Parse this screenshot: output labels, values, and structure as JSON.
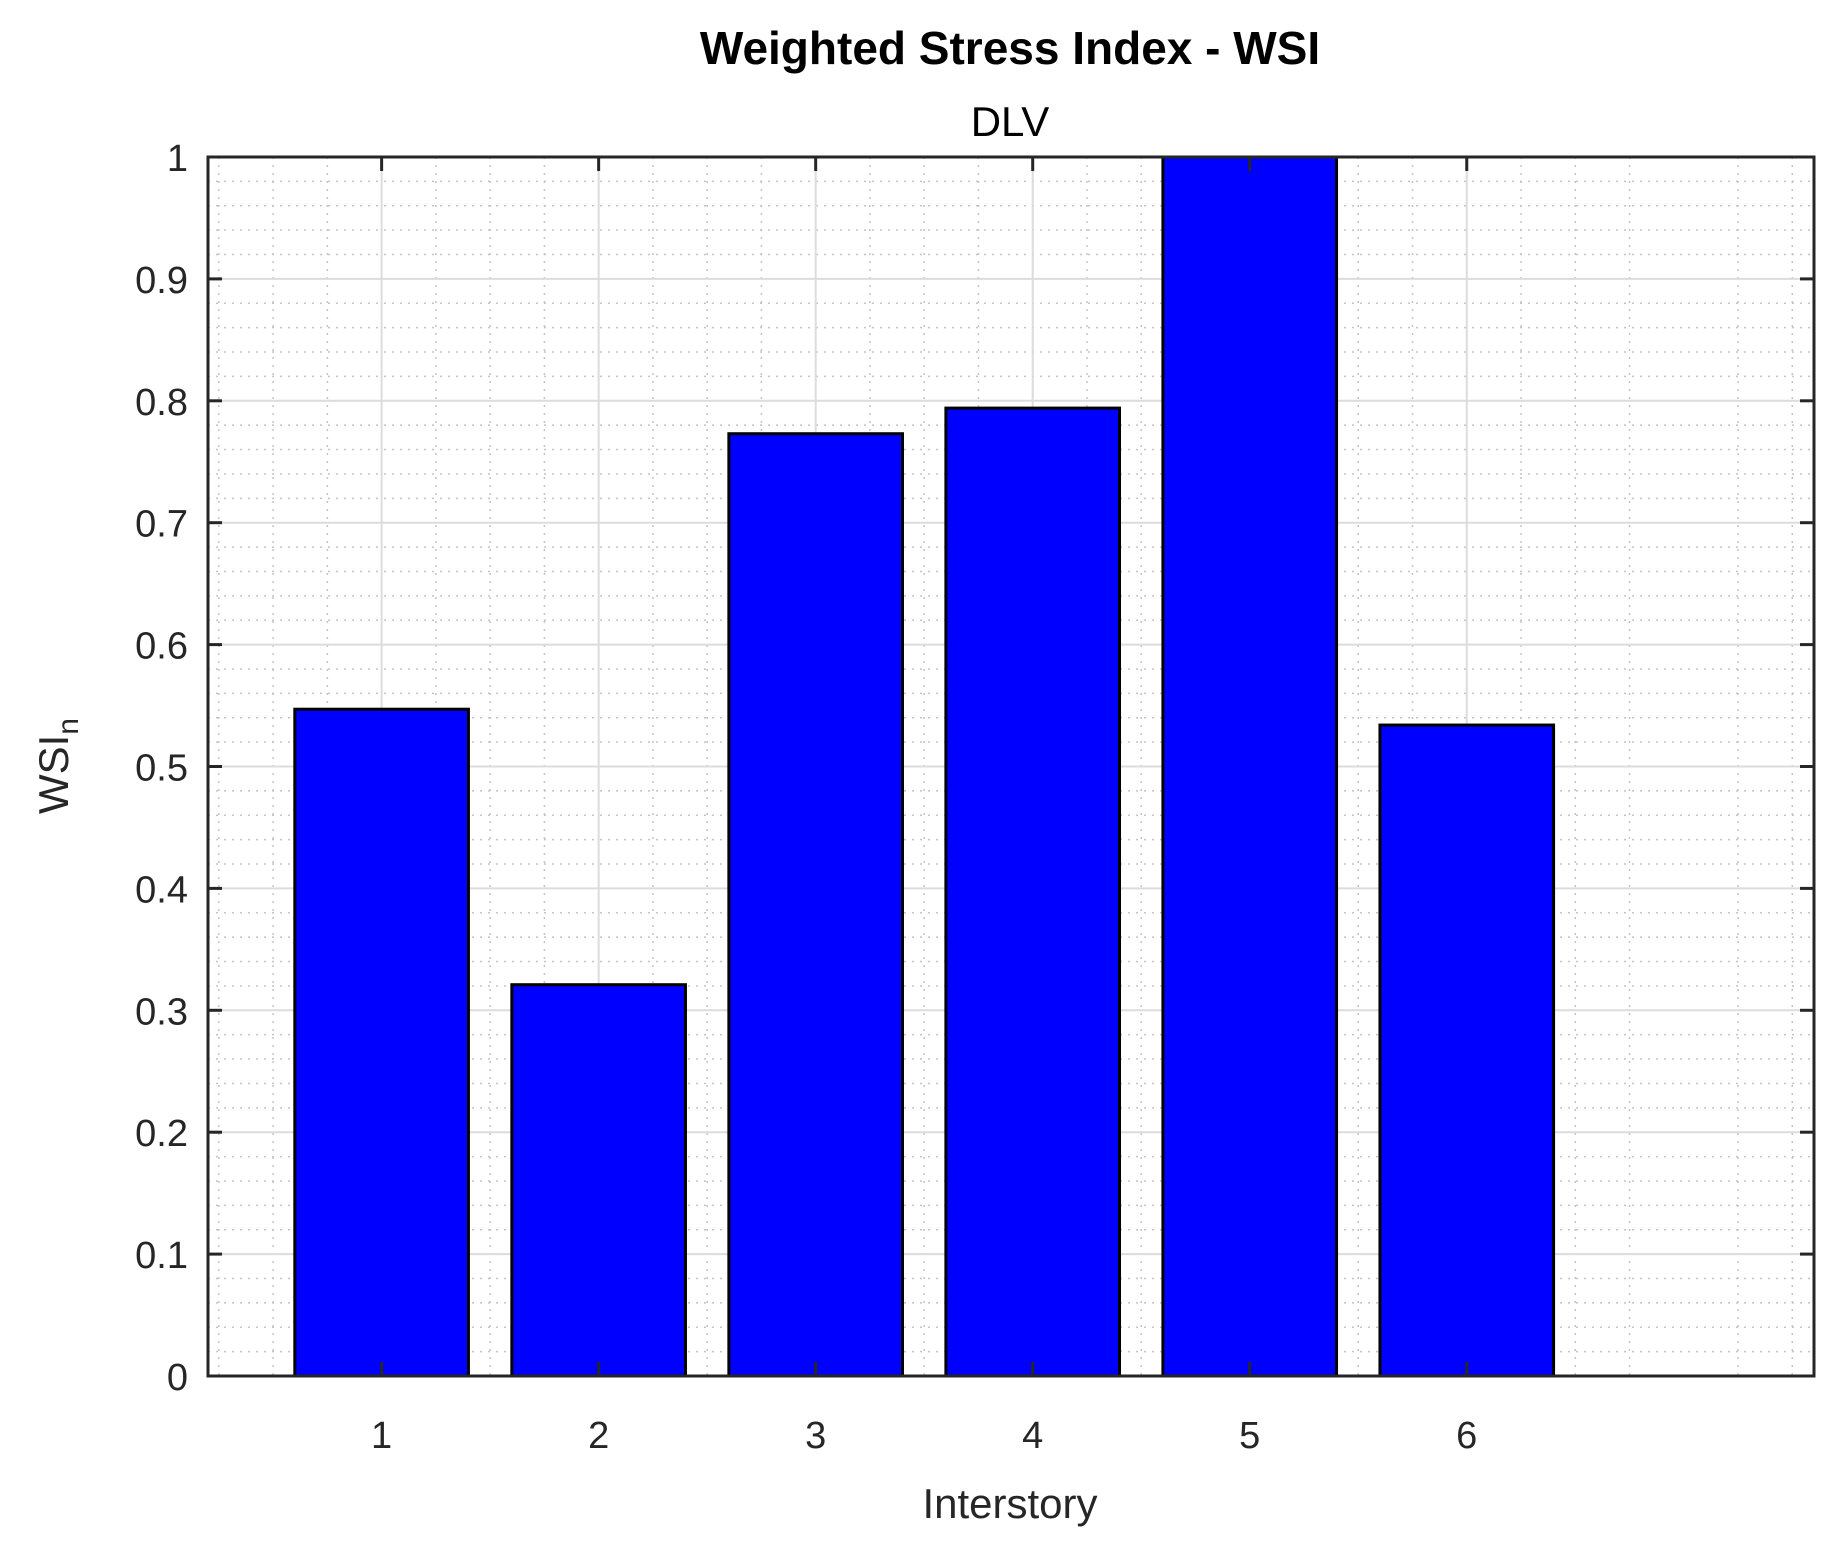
{
  "chart_data": {
    "type": "bar",
    "title": "Weighted Stress Index - WSI",
    "subtitle": "DLV",
    "xlabel": "Interstory",
    "ylabel": "WSI",
    "ylabel_subscript": "n",
    "categories": [
      "1",
      "2",
      "3",
      "4",
      "5",
      "6"
    ],
    "values": [
      0.547,
      0.321,
      0.773,
      0.794,
      1.0,
      0.534
    ],
    "xlim": [
      0.2,
      7.6
    ],
    "ylim": [
      0,
      1
    ],
    "yticks": [
      "0",
      "0.1",
      "0.2",
      "0.3",
      "0.4",
      "0.5",
      "0.6",
      "0.7",
      "0.8",
      "0.9",
      "1"
    ],
    "grid": true,
    "minor_grid": true,
    "colors": {
      "bar_fill": "#0000ff",
      "bar_edge": "#000000",
      "grid": "#dcdcdc",
      "axis": "#262626"
    }
  }
}
